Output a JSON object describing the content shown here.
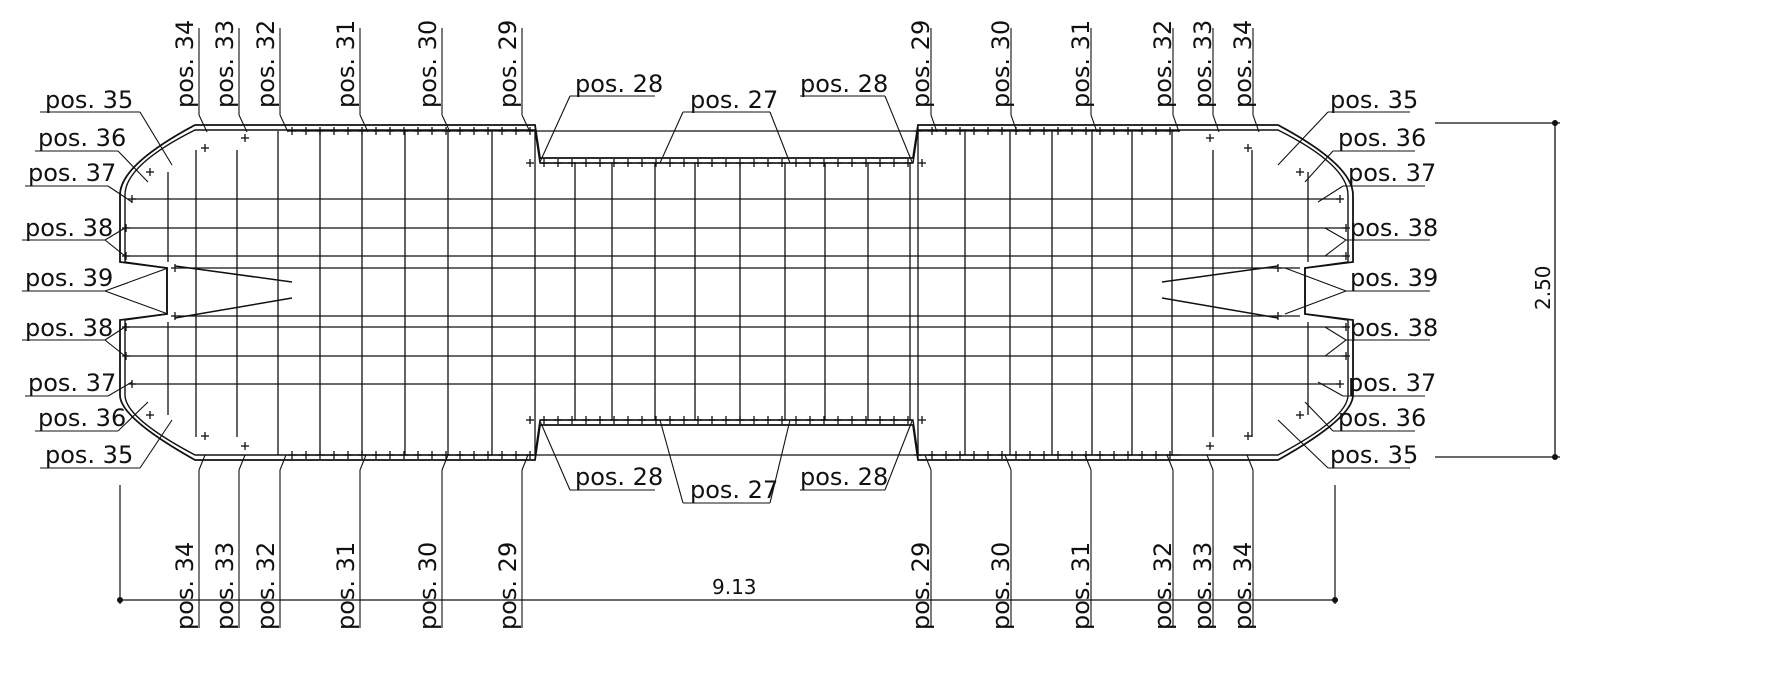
{
  "labels": {
    "pos27": "pos. 27",
    "pos28": "pos. 28",
    "pos29": "pos. 29",
    "pos30": "pos. 30",
    "pos31": "pos. 31",
    "pos32": "pos. 32",
    "pos33": "pos. 33",
    "pos34": "pos. 34",
    "pos35": "pos. 35",
    "pos36": "pos. 36",
    "pos37": "pos. 37",
    "pos38": "pos. 38",
    "pos39": "pos. 39"
  },
  "dimensions": {
    "width": "9.13",
    "height": "2.50"
  }
}
